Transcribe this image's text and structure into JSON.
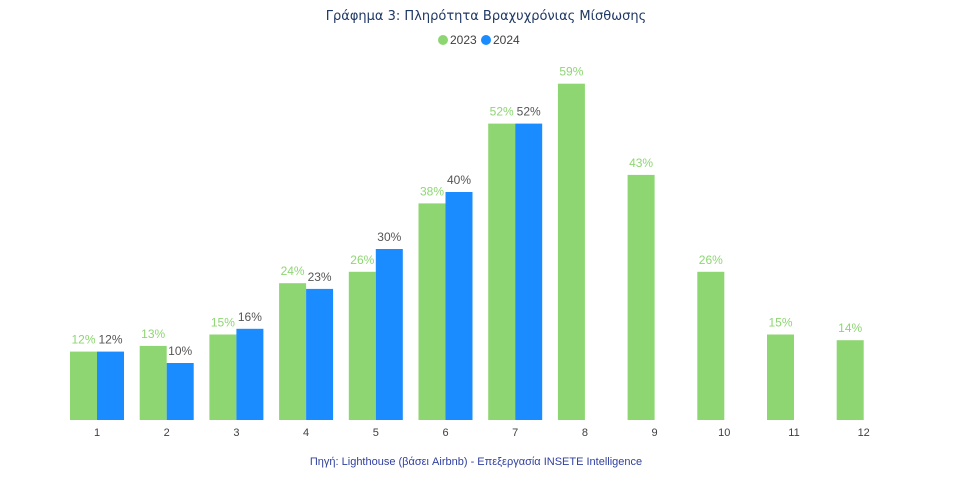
{
  "chart_data": {
    "type": "bar",
    "title": "Γράφημα 3: Πληρότητα Βραχυχρόνιας Μίσθωσης",
    "xlabel": "",
    "ylabel": "",
    "categories": [
      "1",
      "2",
      "3",
      "4",
      "5",
      "6",
      "7",
      "8",
      "9",
      "10",
      "11",
      "12"
    ],
    "series": [
      {
        "name": "2023",
        "color": "#8dd672",
        "values": [
          12,
          13,
          15,
          24,
          26,
          38,
          52,
          59,
          43,
          26,
          15,
          14
        ],
        "labels": [
          "12%",
          "13%",
          "15%",
          "24%",
          "26%",
          "38%",
          "52%",
          "59%",
          "43%",
          "26%",
          "15%",
          "14%"
        ]
      },
      {
        "name": "2024",
        "color": "#1a8cff",
        "values": [
          12,
          10,
          16,
          23,
          30,
          40,
          52,
          null,
          null,
          null,
          null,
          null
        ],
        "labels": [
          "12%",
          "10%",
          "16%",
          "23%",
          "30%",
          "40%",
          "52%",
          null,
          null,
          null,
          null,
          null
        ]
      }
    ],
    "ylim": [
      0,
      60
    ],
    "grid": false,
    "legend": "top-center",
    "label_colors": {
      "2023": "#8dd672",
      "2024": "#555555"
    }
  },
  "source": "Πηγή: Lighthouse (βάσει Airbnb) - Επεξεργασία INSETE Intelligence"
}
